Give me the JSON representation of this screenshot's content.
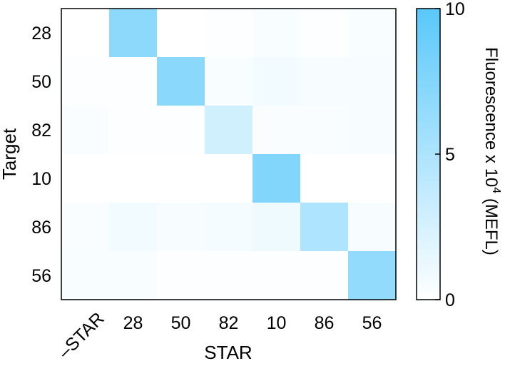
{
  "chart_data": {
    "type": "heatmap",
    "xlabel": "STAR",
    "ylabel": "Target",
    "x_categories": [
      "–STAR",
      "28",
      "50",
      "82",
      "10",
      "86",
      "56"
    ],
    "y_categories": [
      "28",
      "50",
      "82",
      "10",
      "86",
      "56"
    ],
    "values": [
      [
        0.0,
        7.0,
        0.0,
        0.2,
        0.4,
        0.1,
        0.4
      ],
      [
        0.2,
        0.1,
        7.1,
        0.4,
        0.8,
        0.5,
        0.5
      ],
      [
        0.3,
        0.1,
        0.1,
        2.8,
        0.3,
        0.3,
        0.5
      ],
      [
        0.0,
        0.0,
        0.0,
        0.0,
        7.6,
        0.0,
        0.0
      ],
      [
        0.3,
        0.8,
        0.5,
        0.6,
        1.0,
        4.9,
        0.5
      ],
      [
        0.4,
        0.4,
        0.2,
        0.2,
        0.2,
        0.1,
        6.6
      ]
    ],
    "colorbar": {
      "label_prefix": "Fluorescence x 10",
      "label_exponent": "4",
      "label_suffix": " (MEFL)",
      "range": [
        0,
        10
      ],
      "ticks": [
        "0",
        "5",
        "10"
      ],
      "color_min": "#ffffff",
      "color_max": "#5ac8fa"
    }
  }
}
